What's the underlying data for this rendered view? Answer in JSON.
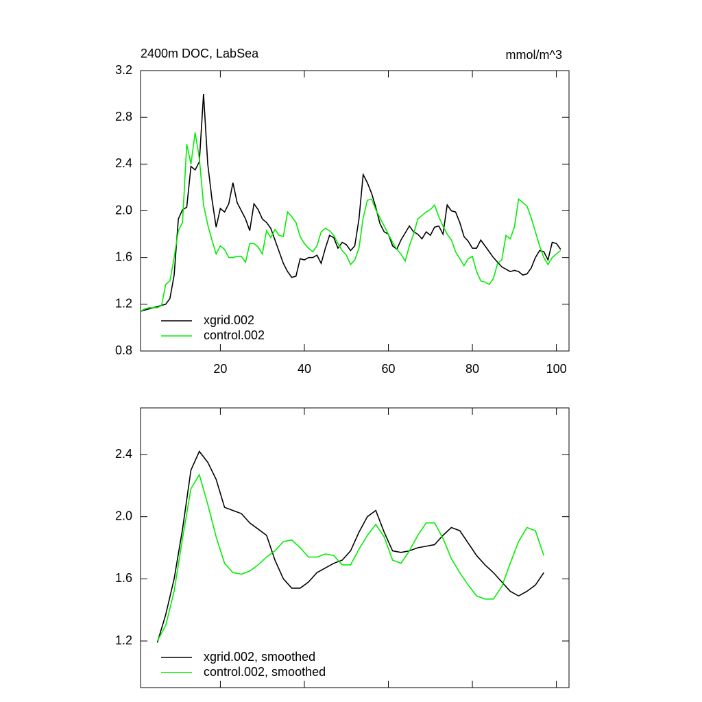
{
  "chart_data": [
    {
      "type": "line",
      "title": "2400m DOC, LabSea",
      "subtitle": "mmol/m^3",
      "x": [
        1,
        2,
        3,
        4,
        5,
        6,
        7,
        8,
        9,
        10,
        11,
        12,
        13,
        14,
        15,
        16,
        17,
        18,
        19,
        20,
        21,
        22,
        23,
        24,
        25,
        26,
        27,
        28,
        29,
        30,
        31,
        32,
        33,
        34,
        35,
        36,
        37,
        38,
        39,
        40,
        41,
        42,
        43,
        44,
        45,
        46,
        47,
        48,
        49,
        50,
        51,
        52,
        53,
        54,
        55,
        56,
        57,
        58,
        59,
        60,
        61,
        62,
        63,
        64,
        65,
        66,
        67,
        68,
        69,
        70,
        71,
        72,
        73,
        74,
        75,
        76,
        77,
        78,
        79,
        80,
        81,
        82,
        83,
        84,
        85,
        86,
        87,
        88,
        89,
        90,
        91,
        92,
        93,
        94,
        95,
        96,
        97,
        98,
        99,
        100,
        101
      ],
      "series": [
        {
          "name": "xgrid.002",
          "color": "#000000",
          "values": [
            1.14,
            1.15,
            1.16,
            1.17,
            1.18,
            1.19,
            1.2,
            1.25,
            1.45,
            1.93,
            2.01,
            2.03,
            2.38,
            2.35,
            2.42,
            3.0,
            2.4,
            2.1,
            1.86,
            2.02,
            1.99,
            2.06,
            2.24,
            2.07,
            2.0,
            1.93,
            1.83,
            2.06,
            2.01,
            1.93,
            1.9,
            1.85,
            1.75,
            1.65,
            1.55,
            1.48,
            1.43,
            1.44,
            1.59,
            1.58,
            1.6,
            1.6,
            1.62,
            1.55,
            1.68,
            1.79,
            1.77,
            1.68,
            1.73,
            1.71,
            1.66,
            1.7,
            1.93,
            2.31,
            2.24,
            2.15,
            2.03,
            1.89,
            1.82,
            1.8,
            1.7,
            1.67,
            1.75,
            1.81,
            1.87,
            1.82,
            1.8,
            1.76,
            1.82,
            1.79,
            1.86,
            1.87,
            1.8,
            2.05,
            2.0,
            1.99,
            1.9,
            1.78,
            1.74,
            1.68,
            1.68,
            1.75,
            1.7,
            1.65,
            1.6,
            1.56,
            1.52,
            1.5,
            1.48,
            1.49,
            1.48,
            1.45,
            1.46,
            1.51,
            1.6,
            1.66,
            1.65,
            1.58,
            1.73,
            1.72,
            1.67
          ]
        },
        {
          "name": "control.002",
          "color": "#00ee00",
          "values": [
            1.14,
            1.16,
            1.17,
            1.17,
            1.17,
            1.19,
            1.37,
            1.4,
            1.6,
            1.83,
            1.9,
            2.57,
            2.4,
            2.67,
            2.45,
            2.05,
            1.88,
            1.75,
            1.63,
            1.7,
            1.67,
            1.6,
            1.6,
            1.61,
            1.61,
            1.56,
            1.72,
            1.72,
            1.69,
            1.63,
            1.83,
            1.77,
            1.84,
            1.79,
            1.78,
            1.99,
            1.95,
            1.9,
            1.78,
            1.72,
            1.68,
            1.65,
            1.7,
            1.82,
            1.85,
            1.83,
            1.79,
            1.72,
            1.66,
            1.62,
            1.54,
            1.58,
            1.68,
            1.94,
            2.09,
            2.1,
            2.01,
            1.94,
            1.87,
            1.8,
            1.73,
            1.67,
            1.63,
            1.57,
            1.7,
            1.8,
            1.93,
            1.96,
            1.99,
            2.01,
            2.05,
            1.95,
            1.87,
            1.8,
            1.75,
            1.65,
            1.59,
            1.53,
            1.59,
            1.61,
            1.48,
            1.4,
            1.39,
            1.37,
            1.42,
            1.55,
            1.58,
            1.79,
            1.76,
            1.86,
            2.1,
            2.07,
            2.04,
            1.94,
            1.82,
            1.7,
            1.6,
            1.54,
            1.6,
            1.63,
            1.66
          ]
        }
      ],
      "xlim": [
        1,
        103
      ],
      "xticks": [
        20,
        40,
        60,
        80,
        100
      ],
      "xtick_labels": true,
      "ylim": [
        0.8,
        3.2
      ],
      "yticks": [
        0.8,
        1.2,
        1.6,
        2.0,
        2.4,
        2.8,
        3.2
      ],
      "legend": "lower left"
    },
    {
      "type": "line",
      "x": [
        5,
        7,
        9,
        11,
        13,
        15,
        17,
        19,
        21,
        23,
        25,
        27,
        29,
        31,
        33,
        35,
        37,
        39,
        41,
        43,
        45,
        47,
        49,
        51,
        53,
        55,
        57,
        59,
        61,
        63,
        65,
        67,
        69,
        71,
        73,
        75,
        77,
        79,
        81,
        83,
        85,
        87,
        89,
        91,
        93,
        95,
        97
      ],
      "series": [
        {
          "name": "xgrid.002, smoothed",
          "color": "#000000",
          "values": [
            1.19,
            1.37,
            1.6,
            1.92,
            2.3,
            2.42,
            2.35,
            2.24,
            2.06,
            2.04,
            2.02,
            1.96,
            1.92,
            1.88,
            1.72,
            1.6,
            1.54,
            1.54,
            1.58,
            1.64,
            1.67,
            1.7,
            1.72,
            1.78,
            1.9,
            2.0,
            2.04,
            1.9,
            1.78,
            1.77,
            1.78,
            1.8,
            1.81,
            1.82,
            1.88,
            1.93,
            1.91,
            1.83,
            1.75,
            1.69,
            1.64,
            1.58,
            1.52,
            1.49,
            1.52,
            1.56,
            1.64
          ]
        },
        {
          "name": "control.002, smoothed",
          "color": "#00ee00",
          "values": [
            1.2,
            1.3,
            1.52,
            1.86,
            2.18,
            2.27,
            2.08,
            1.87,
            1.7,
            1.64,
            1.63,
            1.65,
            1.69,
            1.74,
            1.78,
            1.84,
            1.85,
            1.8,
            1.74,
            1.74,
            1.76,
            1.75,
            1.69,
            1.69,
            1.79,
            1.88,
            1.95,
            1.87,
            1.72,
            1.7,
            1.78,
            1.88,
            1.96,
            1.96,
            1.86,
            1.73,
            1.64,
            1.56,
            1.49,
            1.47,
            1.47,
            1.55,
            1.7,
            1.84,
            1.93,
            1.91,
            1.75
          ]
        }
      ],
      "xlim": [
        1,
        103
      ],
      "xticks": [
        20,
        40,
        60,
        80,
        100
      ],
      "xtick_labels": false,
      "ylim": [
        0.9,
        2.7
      ],
      "yticks": [
        1.2,
        1.6,
        2.0,
        2.4
      ],
      "legend": "lower left"
    }
  ]
}
